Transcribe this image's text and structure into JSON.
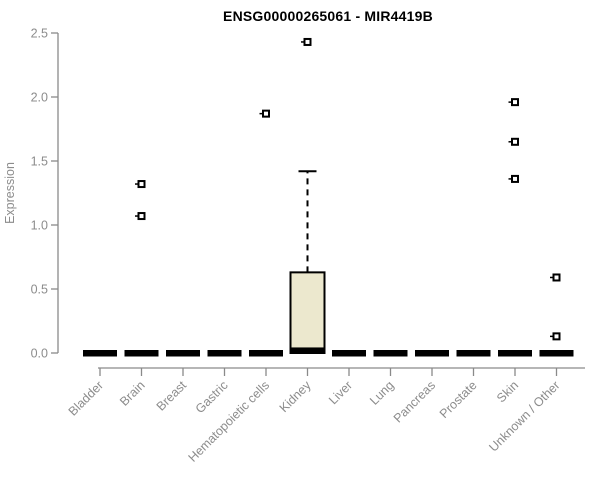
{
  "chart_data": {
    "type": "boxplot",
    "title": "ENSG00000265061 - MIR4419B",
    "xlabel": "",
    "ylabel": "Expression",
    "ylim": [
      0.0,
      2.5
    ],
    "yticks": [
      "0.0",
      "0.5",
      "1.0",
      "1.5",
      "2.0",
      "2.5"
    ],
    "grid": false,
    "legend": "none",
    "categories": [
      "Bladder",
      "Brain",
      "Breast",
      "Gastric",
      "Hematopoietic cells",
      "Kidney",
      "Liver",
      "Lung",
      "Pancreas",
      "Prostate",
      "Skin",
      "Unknown / Other"
    ],
    "series": [
      {
        "category": "Bladder",
        "q1": 0.0,
        "median": 0.0,
        "q3": 0.0,
        "whisker_low": 0.0,
        "whisker_high": 0.0,
        "outliers": []
      },
      {
        "category": "Brain",
        "q1": 0.0,
        "median": 0.0,
        "q3": 0.0,
        "whisker_low": 0.0,
        "whisker_high": 0.0,
        "outliers": [
          1.32,
          1.07
        ]
      },
      {
        "category": "Breast",
        "q1": 0.0,
        "median": 0.0,
        "q3": 0.0,
        "whisker_low": 0.0,
        "whisker_high": 0.0,
        "outliers": []
      },
      {
        "category": "Gastric",
        "q1": 0.0,
        "median": 0.0,
        "q3": 0.0,
        "whisker_low": 0.0,
        "whisker_high": 0.0,
        "outliers": []
      },
      {
        "category": "Hematopoietic cells",
        "q1": 0.0,
        "median": 0.0,
        "q3": 0.0,
        "whisker_low": 0.0,
        "whisker_high": 0.0,
        "outliers": [
          1.87
        ]
      },
      {
        "category": "Kidney",
        "q1": 0.0,
        "median": 0.02,
        "q3": 0.63,
        "whisker_low": 0.0,
        "whisker_high": 1.42,
        "outliers": [
          2.43
        ]
      },
      {
        "category": "Liver",
        "q1": 0.0,
        "median": 0.0,
        "q3": 0.0,
        "whisker_low": 0.0,
        "whisker_high": 0.0,
        "outliers": []
      },
      {
        "category": "Lung",
        "q1": 0.0,
        "median": 0.0,
        "q3": 0.0,
        "whisker_low": 0.0,
        "whisker_high": 0.0,
        "outliers": []
      },
      {
        "category": "Pancreas",
        "q1": 0.0,
        "median": 0.0,
        "q3": 0.0,
        "whisker_low": 0.0,
        "whisker_high": 0.0,
        "outliers": []
      },
      {
        "category": "Prostate",
        "q1": 0.0,
        "median": 0.0,
        "q3": 0.0,
        "whisker_low": 0.0,
        "whisker_high": 0.0,
        "outliers": []
      },
      {
        "category": "Skin",
        "q1": 0.0,
        "median": 0.0,
        "q3": 0.0,
        "whisker_low": 0.0,
        "whisker_high": 0.0,
        "outliers": [
          1.96,
          1.65,
          1.36
        ]
      },
      {
        "category": "Unknown / Other",
        "q1": 0.0,
        "median": 0.0,
        "q3": 0.0,
        "whisker_low": 0.0,
        "whisker_high": 0.0,
        "outliers": [
          0.59,
          0.13
        ]
      }
    ],
    "colors": {
      "box_fill": "#ece8ce",
      "box_stroke": "#000000",
      "median": "#000000",
      "whisker": "#000000",
      "outlier": "#000000",
      "axis": "#8a8a8a",
      "tick_text": "#8c8c8c",
      "title_text": "#000000",
      "background": "#ffffff"
    }
  }
}
